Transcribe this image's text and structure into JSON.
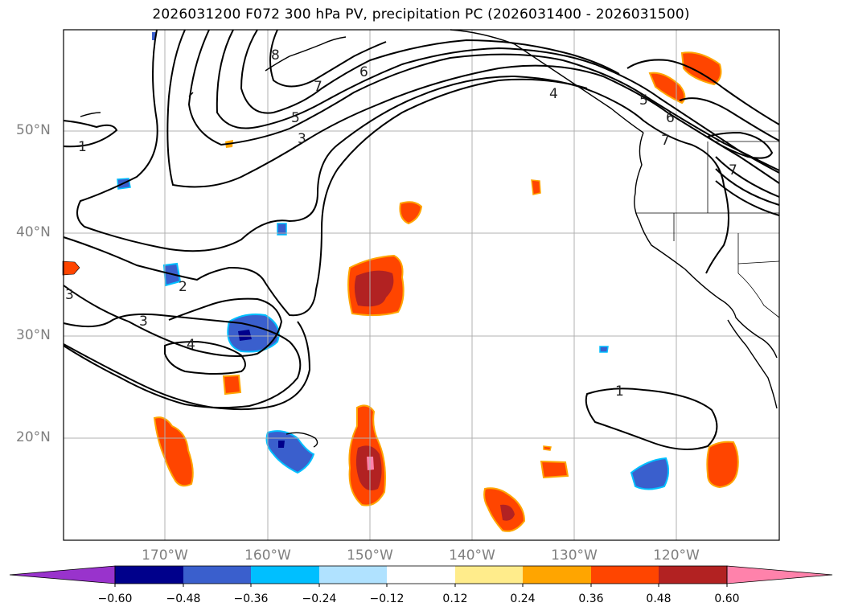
{
  "title": "2026031200 F072 300 hPa PV, precipitation PC (2026031400 - 2026031500)",
  "latitude_labels": [
    "50°N",
    "40°N",
    "30°N",
    "20°N"
  ],
  "longitude_labels": [
    "170°W",
    "160°W",
    "150°W",
    "140°W",
    "130°W",
    "120°W"
  ],
  "colorbar": {
    "ticks": [
      "−0.60",
      "−0.48",
      "−0.36",
      "−0.24",
      "−0.12",
      "0.12",
      "0.24",
      "0.36",
      "0.48",
      "0.60"
    ],
    "colors": [
      "#9933cc",
      "#00008b",
      "#3a5fcd",
      "#00bfff",
      "#b0e2ff",
      "#ffffff",
      "#ffec8b",
      "#ffa500",
      "#ff4500",
      "#b22222",
      "#ff82ab"
    ]
  },
  "pv_contour_labels": [
    "1",
    "2",
    "3",
    "4",
    "5",
    "6",
    "7",
    "8",
    "1",
    "3",
    "4",
    "5",
    "6",
    "7",
    "7",
    "3"
  ],
  "colors": {
    "positive_precip": "#ff4500",
    "strong_positive": "#b22222",
    "negative_precip": "#3a5fcd",
    "strong_negative": "#00008b",
    "contour": "#000000",
    "grid": "#b0b0b0",
    "coast": "#000000"
  }
}
